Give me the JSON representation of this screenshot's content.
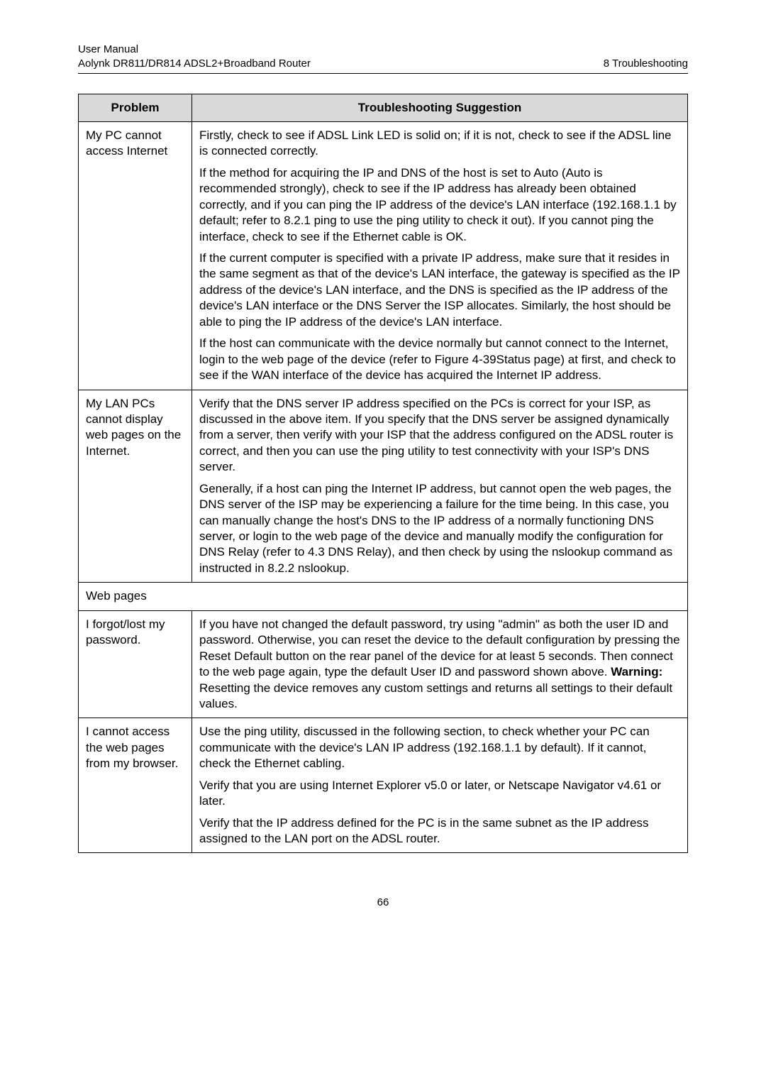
{
  "header": {
    "left_line1": "User Manual",
    "left_line2": "Aolynk DR811/DR814 ADSL2+Broadband Router",
    "right": "8  Troubleshooting"
  },
  "table": {
    "head_problem": "Problem",
    "head_suggestion": "Troubleshooting Suggestion",
    "rows": [
      {
        "problem": "My PC cannot access Internet",
        "paras": [
          "Firstly, check to see if ADSL Link LED is solid on; if it is not, check to see if the ADSL line is connected correctly.",
          "If the method for acquiring the IP and DNS of the host is set to Auto (Auto is recommended strongly), check to see if the IP address has already been obtained correctly, and if you can ping the IP address of the device's LAN interface (192.168.1.1 by default; refer to 8.2.1  ping to use the ping utility to check it out). If you cannot ping the interface, check to see if the Ethernet cable is OK.",
          "If the current computer is specified with a private IP address, make sure that it resides in the same segment as that of the device's LAN interface, the gateway is specified as the IP address of the device's LAN interface, and the DNS is specified as the IP address of the device's LAN interface or the DNS Server the ISP allocates. Similarly, the host should be able to ping the IP address of the device's LAN interface.",
          "If the host can communicate with the device normally but cannot connect to the Internet, login to the web page of the device (refer to Figure 4-39Status page) at first, and check to see if the WAN interface of the device has acquired the Internet IP address."
        ]
      },
      {
        "problem": "My LAN PCs cannot display web pages on the Internet.",
        "paras": [
          "Verify that the DNS server IP address specified on the PCs is correct for your ISP, as discussed in the above item. If you specify that the DNS server be assigned dynamically from a server, then verify with your ISP that the address configured on the ADSL router is correct, and then you can use the ping utility to test connectivity with your ISP's DNS server.",
          "Generally, if a host can ping the Internet IP address, but cannot open the web pages, the DNS server of the ISP may be experiencing a failure for the time being. In this case, you can manually change the host's DNS to the IP address of a  normally functioning DNS server, or login to the web page of the device and manually modify the configuration for DNS Relay (refer to 4.3  DNS Relay), and then check by using the nslookup command as instructed in 8.2.2  nslookup."
        ]
      }
    ],
    "webpages_label": "Web pages",
    "forgot": {
      "problem": "I forgot/lost my password.",
      "pre": "If you have not changed the default password, try using \"admin\" as both the user ID and password. Otherwise, you can reset the device to the default configuration by pressing the Reset Default button on the rear panel of the device for at least 5 seconds. Then connect to the web page again, type the default User ID and password shown above. ",
      "bold": "Warning:",
      "post": " Resetting the device removes any custom settings and returns all settings to their default values."
    },
    "browser": {
      "problem": "I cannot access the web pages from my browser.",
      "paras": [
        "Use the ping utility, discussed in the following section, to check whether your PC can communicate with the device's LAN IP address (192.168.1.1 by default). If it cannot, check the Ethernet cabling.",
        "Verify that you are using Internet Explorer v5.0 or later, or Netscape Navigator v4.61 or later.",
        "Verify that the IP address defined for the PC is in the same subnet as the IP address assigned to the LAN port on the ADSL router."
      ]
    }
  },
  "footer": "66"
}
